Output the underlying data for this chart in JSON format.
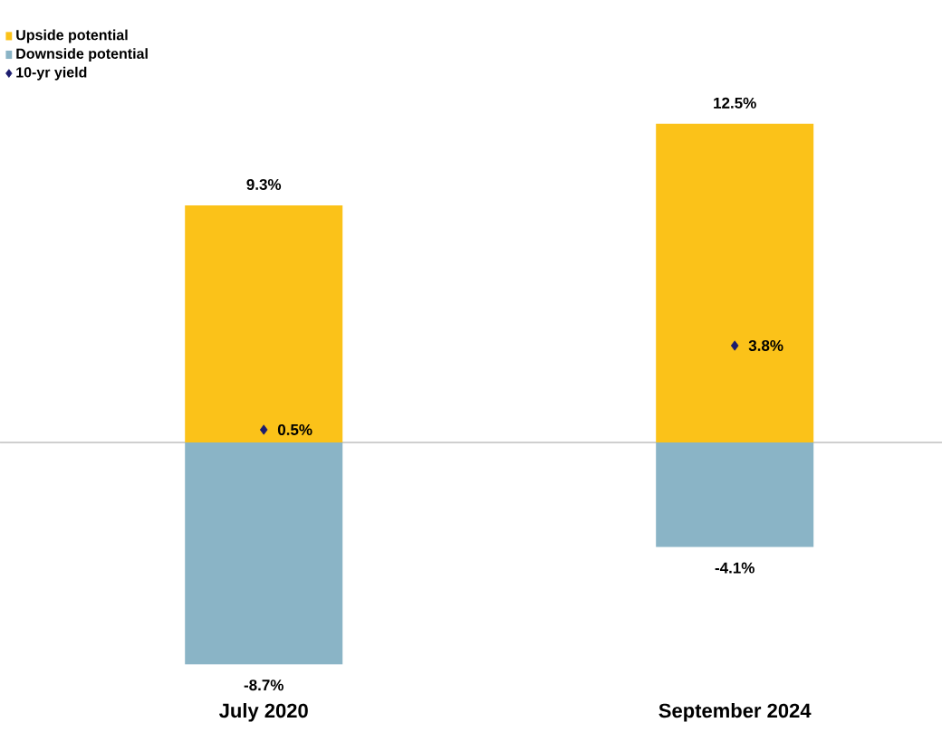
{
  "chart_data": {
    "type": "bar",
    "categories": [
      "July 2020",
      "September 2024"
    ],
    "series": [
      {
        "name": "Upside potential",
        "color": "#fbc219",
        "values": [
          9.3,
          12.5
        ],
        "value_labels": [
          "9.3%",
          "12.5%"
        ]
      },
      {
        "name": "Downside potential",
        "color": "#8ab4c6",
        "values": [
          -8.7,
          -4.1
        ],
        "value_labels": [
          "-8.7%",
          "-4.1%"
        ]
      },
      {
        "name": "10-yr yield",
        "type": "scatter",
        "marker": "diamond",
        "color": "#1c1c6e",
        "values": [
          0.5,
          3.8
        ],
        "value_labels": [
          "0.5%",
          "3.8%"
        ]
      }
    ],
    "stacked": true,
    "tick_labels": "x",
    "legend": "top left",
    "ref_lines": [
      {
        "axis": "y",
        "value": 0,
        "color": "#cfcfcf"
      }
    ]
  }
}
